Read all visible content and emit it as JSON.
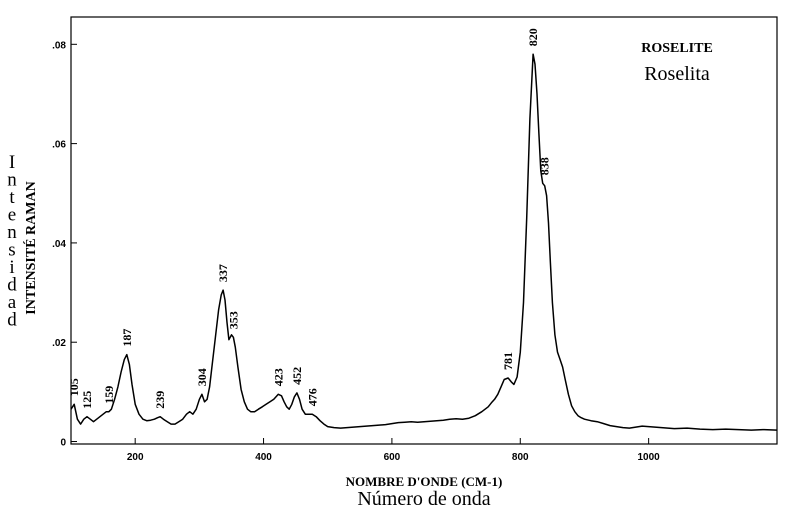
{
  "chart_data": {
    "type": "line",
    "title": "ROSELITE",
    "subtitle": "Roselita",
    "xlabel": "NOMBRE D'ONDE (CM-1)",
    "xlabel_secondary": "Número de onda",
    "ylabel": "INTENSITÉ RAMAN",
    "ylabel_secondary": "Intensidad",
    "xlim": [
      100,
      1200
    ],
    "ylim": [
      -0.0005,
      0.0855
    ],
    "x_ticks": [
      200,
      400,
      600,
      800,
      1000
    ],
    "x_tick_labels": [
      "200",
      "400",
      "600",
      "800",
      "1000"
    ],
    "y_ticks": [
      0,
      0.02,
      0.04,
      0.06,
      0.08
    ],
    "y_tick_labels": [
      "0",
      ".02",
      ".04",
      ".06",
      ".08"
    ],
    "grid": false,
    "legend": "none",
    "line_color": "#000000",
    "series": [
      {
        "x": [
          100,
          105,
          110,
          115,
          120,
          125,
          130,
          135,
          140,
          145,
          150,
          155,
          159,
          163,
          168,
          173,
          178,
          183,
          187,
          191,
          195,
          200,
          206,
          212,
          218,
          224,
          230,
          235,
          239,
          244,
          250,
          256,
          262,
          268,
          274,
          280,
          285,
          290,
          295,
          300,
          304,
          308,
          312,
          316,
          320,
          325,
          330,
          334,
          337,
          340,
          343,
          346,
          350,
          353,
          356,
          360,
          365,
          370,
          375,
          380,
          386,
          392,
          398,
          404,
          410,
          416,
          423,
          428,
          432,
          436,
          440,
          444,
          448,
          452,
          456,
          460,
          465,
          470,
          476,
          482,
          488,
          494,
          500,
          510,
          520,
          530,
          540,
          550,
          560,
          570,
          580,
          590,
          600,
          610,
          620,
          630,
          640,
          650,
          660,
          670,
          680,
          690,
          700,
          710,
          720,
          730,
          740,
          750,
          755,
          760,
          765,
          770,
          775,
          781,
          786,
          790,
          795,
          800,
          805,
          810,
          815,
          820,
          823,
          826,
          829,
          832,
          835,
          838,
          841,
          844,
          847,
          850,
          854,
          858,
          862,
          866,
          870,
          875,
          880,
          885,
          890,
          895,
          900,
          910,
          920,
          930,
          940,
          950,
          960,
          970,
          980,
          990,
          1000,
          1020,
          1040,
          1060,
          1080,
          1100,
          1120,
          1140,
          1160,
          1180,
          1200
        ],
        "y": [
          0.0065,
          0.0075,
          0.0045,
          0.0035,
          0.0045,
          0.005,
          0.0045,
          0.004,
          0.0045,
          0.005,
          0.0055,
          0.006,
          0.006,
          0.0065,
          0.0085,
          0.011,
          0.014,
          0.0165,
          0.0175,
          0.0155,
          0.0115,
          0.0075,
          0.0055,
          0.0045,
          0.0042,
          0.0043,
          0.0045,
          0.0048,
          0.005,
          0.0045,
          0.004,
          0.0035,
          0.0035,
          0.004,
          0.0045,
          0.0055,
          0.006,
          0.0055,
          0.0065,
          0.0085,
          0.0095,
          0.008,
          0.0085,
          0.011,
          0.0155,
          0.021,
          0.0265,
          0.0295,
          0.0305,
          0.0285,
          0.024,
          0.0205,
          0.0215,
          0.021,
          0.019,
          0.015,
          0.0105,
          0.008,
          0.0065,
          0.006,
          0.006,
          0.0065,
          0.007,
          0.0075,
          0.008,
          0.0085,
          0.0095,
          0.0092,
          0.008,
          0.007,
          0.0065,
          0.0075,
          0.009,
          0.0098,
          0.0085,
          0.0065,
          0.0055,
          0.0055,
          0.0055,
          0.005,
          0.0042,
          0.0035,
          0.003,
          0.0028,
          0.0027,
          0.0028,
          0.0029,
          0.003,
          0.0031,
          0.0032,
          0.0033,
          0.0034,
          0.0036,
          0.0038,
          0.0039,
          0.004,
          0.0039,
          0.004,
          0.0041,
          0.0042,
          0.0043,
          0.0045,
          0.0046,
          0.0045,
          0.0047,
          0.0052,
          0.006,
          0.007,
          0.0078,
          0.0085,
          0.0095,
          0.011,
          0.0125,
          0.0128,
          0.012,
          0.0115,
          0.013,
          0.018,
          0.028,
          0.045,
          0.065,
          0.078,
          0.076,
          0.07,
          0.062,
          0.0545,
          0.052,
          0.0515,
          0.0495,
          0.044,
          0.036,
          0.028,
          0.0215,
          0.018,
          0.0165,
          0.015,
          0.0125,
          0.0095,
          0.0072,
          0.006,
          0.0052,
          0.0048,
          0.0045,
          0.0042,
          0.004,
          0.0036,
          0.0032,
          0.003,
          0.0028,
          0.0027,
          0.0029,
          0.0031,
          0.003,
          0.0028,
          0.0026,
          0.0027,
          0.0025,
          0.0024,
          0.0025,
          0.0024,
          0.0023,
          0.0024,
          0.0023
        ]
      }
    ],
    "annotations": [
      {
        "x": 105,
        "y": 0.0075,
        "text": "105"
      },
      {
        "x": 125,
        "y": 0.005,
        "text": "125"
      },
      {
        "x": 159,
        "y": 0.006,
        "text": "159"
      },
      {
        "x": 187,
        "y": 0.0175,
        "text": "187"
      },
      {
        "x": 239,
        "y": 0.005,
        "text": "239"
      },
      {
        "x": 304,
        "y": 0.0095,
        "text": "304"
      },
      {
        "x": 337,
        "y": 0.0305,
        "text": "337"
      },
      {
        "x": 353,
        "y": 0.021,
        "text": "353"
      },
      {
        "x": 423,
        "y": 0.0095,
        "text": "423"
      },
      {
        "x": 452,
        "y": 0.0098,
        "text": "452"
      },
      {
        "x": 476,
        "y": 0.0055,
        "text": "476"
      },
      {
        "x": 781,
        "y": 0.0128,
        "text": "781"
      },
      {
        "x": 820,
        "y": 0.078,
        "text": "820"
      },
      {
        "x": 838,
        "y": 0.052,
        "text": "838"
      }
    ]
  }
}
